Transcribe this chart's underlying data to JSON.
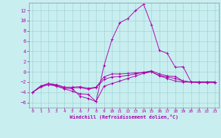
{
  "title": "",
  "xlabel": "Windchill (Refroidissement éolien,°C)",
  "ylabel": "",
  "xlim": [
    -0.5,
    23.5
  ],
  "ylim": [
    -7,
    13.5
  ],
  "yticks": [
    -6,
    -4,
    -2,
    0,
    2,
    4,
    6,
    8,
    10,
    12
  ],
  "xticks": [
    0,
    1,
    2,
    3,
    4,
    5,
    6,
    7,
    8,
    9,
    10,
    11,
    12,
    13,
    14,
    15,
    16,
    17,
    18,
    19,
    20,
    21,
    22,
    23
  ],
  "bg_color": "#c8eef0",
  "line_color": "#aa00aa",
  "grid_color": "#99cccc",
  "lines": [
    [
      -4.0,
      -3.0,
      -2.5,
      -2.8,
      -3.2,
      -3.3,
      -4.8,
      -5.2,
      -5.8,
      1.2,
      6.3,
      9.6,
      10.4,
      12.0,
      13.2,
      9.2,
      4.2,
      3.6,
      0.9,
      1.0,
      -2.0,
      -2.1,
      -2.1,
      -2.1
    ],
    [
      -4.0,
      -2.8,
      -2.3,
      -2.5,
      -3.0,
      -3.0,
      -2.9,
      -3.2,
      -3.0,
      -1.0,
      -0.4,
      -0.4,
      -0.3,
      -0.2,
      -0.1,
      0.2,
      -0.4,
      -0.8,
      -0.9,
      -1.8,
      -2.0,
      -2.0,
      -2.0,
      -2.0
    ],
    [
      -4.0,
      -2.8,
      -2.3,
      -2.6,
      -3.0,
      -3.1,
      -3.1,
      -3.4,
      -3.1,
      -1.5,
      -1.0,
      -0.9,
      -0.7,
      -0.4,
      -0.1,
      0.0,
      -0.7,
      -1.0,
      -1.3,
      -1.8,
      -2.0,
      -2.0,
      -2.0,
      -2.0
    ],
    [
      -4.0,
      -2.8,
      -2.3,
      -2.8,
      -3.3,
      -3.8,
      -4.3,
      -4.4,
      -5.8,
      -2.8,
      -2.3,
      -1.8,
      -1.3,
      -0.8,
      -0.3,
      -0.0,
      -0.8,
      -1.3,
      -1.8,
      -2.0,
      -2.0,
      -2.0,
      -2.0,
      -2.0
    ]
  ]
}
